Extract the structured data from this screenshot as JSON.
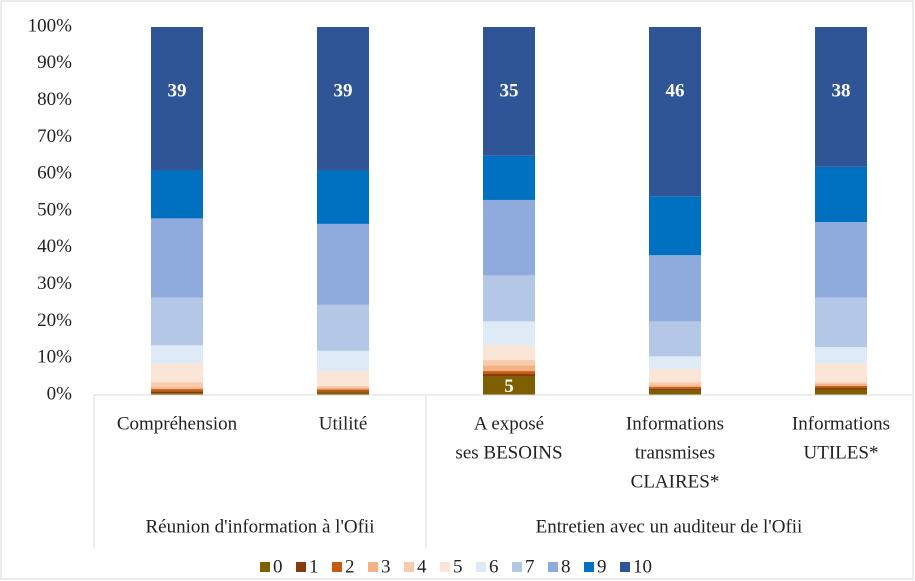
{
  "chart_data": {
    "type": "stacked_bar_percent",
    "categories": [
      [
        "Compréhension"
      ],
      [
        "Utilité"
      ],
      [
        "A exposé",
        "ses BESOINS"
      ],
      [
        "Informations",
        "transmises",
        "CLAIRES*"
      ],
      [
        "Informations",
        "UTILES*"
      ]
    ],
    "category_groups": [
      {
        "label": "Réunion d'information à l'Ofii",
        "count": 2
      },
      {
        "label": "Entretien avec un auditeur de l'Ofii",
        "count": 3
      }
    ],
    "series": [
      {
        "name": "0",
        "color": "#7f6000",
        "values": [
          0.5,
          0.7,
          5,
          1.2,
          1.5
        ]
      },
      {
        "name": "1",
        "color": "#843c0c",
        "values": [
          0.5,
          0.3,
          0.7,
          0.5,
          0.5
        ]
      },
      {
        "name": "2",
        "color": "#c55a11",
        "values": [
          0.6,
          0.5,
          0.8,
          0.5,
          0.5
        ]
      },
      {
        "name": "3",
        "color": "#f4b183",
        "values": [
          0.5,
          0.5,
          1.5,
          0.5,
          0.5
        ]
      },
      {
        "name": "4",
        "color": "#f8cbad",
        "values": [
          1.4,
          0.5,
          1.5,
          0.8,
          0.5
        ]
      },
      {
        "name": "5",
        "color": "#fbe5d6",
        "values": [
          5,
          4,
          4,
          3.5,
          5
        ]
      },
      {
        "name": "6",
        "color": "#deebf7",
        "values": [
          5,
          5.5,
          6.5,
          3.5,
          4.5
        ]
      },
      {
        "name": "7",
        "color": "#b4c7e7",
        "values": [
          13,
          12.5,
          12.5,
          9.5,
          13.5
        ]
      },
      {
        "name": "8",
        "color": "#8faadc",
        "values": [
          21.5,
          22,
          20.5,
          18,
          20.5
        ]
      },
      {
        "name": "9",
        "color": "#0070c0",
        "values": [
          13,
          14.5,
          12,
          16,
          15
        ]
      },
      {
        "name": "10",
        "color": "#2f5597",
        "values": [
          39,
          39,
          35,
          46,
          38
        ]
      }
    ],
    "ylim": [
      0,
      100
    ],
    "yticks": [
      {
        "value": 0,
        "label": "0%"
      },
      {
        "value": 10,
        "label": "10%"
      },
      {
        "value": 20,
        "label": "20%"
      },
      {
        "value": 30,
        "label": "30%"
      },
      {
        "value": 40,
        "label": "40%"
      },
      {
        "value": 50,
        "label": "50%"
      },
      {
        "value": 60,
        "label": "60%"
      },
      {
        "value": 70,
        "label": "70%"
      },
      {
        "value": 80,
        "label": "80%"
      },
      {
        "value": 90,
        "label": "90%"
      },
      {
        "value": 100,
        "label": "100%"
      }
    ],
    "grid": false,
    "legend": "bottom"
  }
}
